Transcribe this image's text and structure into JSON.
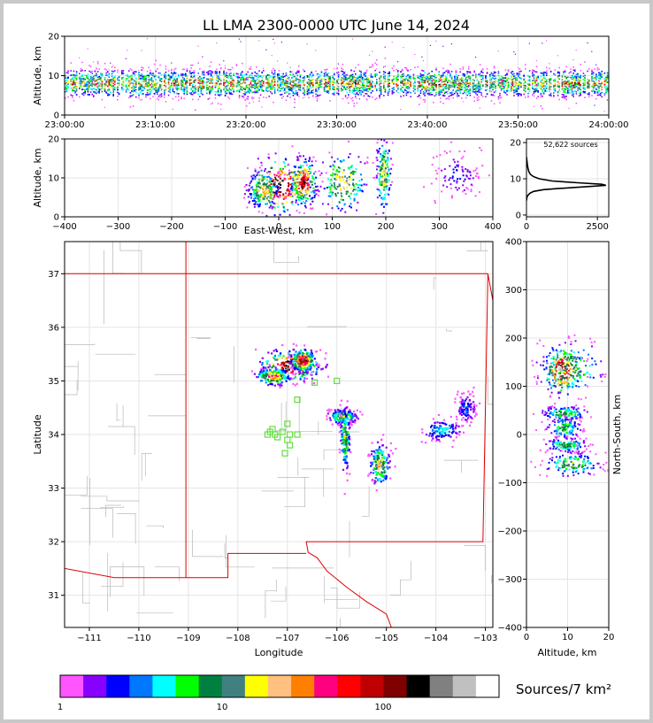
{
  "title": "LL LMA 2300-0000 UTC June 14, 2024",
  "colors": {
    "palette": [
      "#ff55ff",
      "#8800ff",
      "#0000ff",
      "#0077ff",
      "#00ffff",
      "#00ff00",
      "#008040",
      "#408080",
      "#ffff00",
      "#ffc080",
      "#ff8000",
      "#ff0080",
      "#ff0000",
      "#c00000",
      "#800000",
      "#000000",
      "#808080",
      "#c0c0c0",
      "#ffffff"
    ],
    "state_border": "#e00000",
    "county_border": "#b8b8b8",
    "station": "#66dd44",
    "grid": "#e4e4e4"
  },
  "colorbar": {
    "label": "Sources/7 km²",
    "ticks": [
      "1",
      "10",
      "100"
    ]
  },
  "chart_data": [
    {
      "id": "time-altitude",
      "type": "heatmap",
      "ylabel": "Altitude, km",
      "xlabel": "",
      "ylim": [
        0,
        20
      ],
      "yticks": [
        "0",
        "10",
        "20"
      ],
      "xticks": [
        "23:00:00",
        "23:10:00",
        "23:20:00",
        "23:30:00",
        "23:40:00",
        "23:50:00",
        "24:00:00"
      ],
      "band": {
        "center_km": 8,
        "half_width_km": 3
      }
    },
    {
      "id": "eastwest-altitude",
      "type": "heatmap",
      "xlabel": "East-West, km",
      "ylabel": "Altitude, km",
      "xlim": [
        -400,
        400
      ],
      "ylim": [
        0,
        20
      ],
      "xticks": [
        "−400",
        "−300",
        "−200",
        "−100",
        "0",
        "100",
        "200",
        "300",
        "400"
      ],
      "yticks": [
        "0",
        "10",
        "20"
      ],
      "clusters": [
        {
          "x": 0,
          "y": 8,
          "sx": 28,
          "sy": 3.5,
          "peak": 1.0
        },
        {
          "x": 45,
          "y": 9,
          "sx": 12,
          "sy": 3,
          "peak": 0.9
        },
        {
          "x": -30,
          "y": 7,
          "sx": 15,
          "sy": 2.5,
          "peak": 0.6
        },
        {
          "x": 120,
          "y": 9,
          "sx": 22,
          "sy": 4,
          "peak": 0.6
        },
        {
          "x": 195,
          "y": 11,
          "sx": 7,
          "sy": 5,
          "peak": 0.55
        },
        {
          "x": 330,
          "y": 11,
          "sx": 25,
          "sy": 3,
          "peak": 0.15
        }
      ]
    },
    {
      "id": "altitude-histogram",
      "type": "line",
      "annotation": "52,622 sources",
      "xlim": [
        0,
        2900
      ],
      "ylim": [
        0,
        20
      ],
      "xticks": [
        "0",
        "2500"
      ],
      "yticks": [
        "0",
        "10",
        "20"
      ],
      "x": [
        0,
        20,
        60,
        120,
        250,
        600,
        1100,
        1700,
        2300,
        2800,
        2650,
        1800,
        900,
        450,
        250,
        140,
        80,
        50,
        30,
        15,
        0
      ],
      "y": [
        4.0,
        5.0,
        5.5,
        6.0,
        6.5,
        7.0,
        7.3,
        7.6,
        7.9,
        8.2,
        8.5,
        8.9,
        9.4,
        10.0,
        10.6,
        11.2,
        12.0,
        13.0,
        14.0,
        15.0,
        16.0
      ]
    },
    {
      "id": "plan-view-map",
      "type": "heatmap",
      "xlabel": "Longitude",
      "ylabel": "Latitude",
      "xlim": [
        -111.5,
        -102.85
      ],
      "ylim": [
        30.4,
        37.6
      ],
      "xticks": [
        "−111",
        "−110",
        "−109",
        "−108",
        "−107",
        "−106",
        "−105",
        "−104",
        "−103"
      ],
      "yticks": [
        "31",
        "32",
        "33",
        "34",
        "35",
        "36",
        "37"
      ],
      "clusters": [
        {
          "lon": -106.95,
          "lat": 35.3,
          "slon": 0.3,
          "slat": 0.14,
          "peak": 1.0
        },
        {
          "lon": -106.7,
          "lat": 35.4,
          "slon": 0.12,
          "slat": 0.1,
          "peak": 0.95
        },
        {
          "lon": -107.3,
          "lat": 35.1,
          "slon": 0.18,
          "slat": 0.08,
          "peak": 0.7
        },
        {
          "lon": -105.9,
          "lat": 34.35,
          "slon": 0.15,
          "slat": 0.07,
          "peak": 0.5
        },
        {
          "lon": -105.85,
          "lat": 33.95,
          "slon": 0.05,
          "slat": 0.3,
          "peak": 0.5
        },
        {
          "lon": -105.15,
          "lat": 33.45,
          "slon": 0.1,
          "slat": 0.2,
          "peak": 0.6
        },
        {
          "lon": -103.9,
          "lat": 34.1,
          "slon": 0.2,
          "slat": 0.1,
          "peak": 0.3
        },
        {
          "lon": -103.4,
          "lat": 34.5,
          "slon": 0.1,
          "slat": 0.15,
          "peak": 0.2
        }
      ],
      "stations": [
        [
          -106.45,
          34.97
        ],
        [
          -106.0,
          35.0
        ],
        [
          -106.8,
          34.65
        ],
        [
          -107.35,
          34.05
        ],
        [
          -107.25,
          34.0
        ],
        [
          -107.3,
          34.1
        ],
        [
          -107.1,
          34.05
        ],
        [
          -107.0,
          34.2
        ],
        [
          -106.95,
          34.0
        ],
        [
          -106.8,
          34.0
        ],
        [
          -107.0,
          33.9
        ],
        [
          -106.95,
          33.8
        ],
        [
          -107.05,
          33.65
        ],
        [
          -107.4,
          34.0
        ],
        [
          -107.2,
          33.95
        ]
      ],
      "state_borders": [
        [
          [
            -111.5,
            37.0
          ],
          [
            -102.95,
            37.0
          ]
        ],
        [
          [
            -109.05,
            37.6
          ],
          [
            -109.05,
            31.33
          ]
        ],
        [
          [
            -102.95,
            37.0
          ],
          [
            -102.85,
            36.5
          ]
        ],
        [
          [
            -102.95,
            37.0
          ],
          [
            -103.05,
            32.0
          ],
          [
            -106.62,
            32.0
          ],
          [
            -106.58,
            31.8
          ],
          [
            -106.4,
            31.7
          ],
          [
            -106.2,
            31.45
          ],
          [
            -105.8,
            31.15
          ],
          [
            -105.4,
            30.88
          ],
          [
            -105.0,
            30.65
          ],
          [
            -104.9,
            30.4
          ]
        ],
        [
          [
            -109.05,
            31.33
          ],
          [
            -108.2,
            31.33
          ],
          [
            -108.2,
            31.78
          ],
          [
            -106.62,
            31.78
          ]
        ],
        [
          [
            -111.5,
            31.5
          ],
          [
            -110.5,
            31.33
          ],
          [
            -109.05,
            31.33
          ]
        ]
      ]
    },
    {
      "id": "altitude-northsouth",
      "type": "heatmap",
      "xlabel": "Altitude, km",
      "ylabel": "North-South, km",
      "xlim": [
        0,
        20
      ],
      "ylim": [
        -400,
        400
      ],
      "xticks": [
        "0",
        "10",
        "20"
      ],
      "yticks": [
        "−400",
        "−300",
        "−200",
        "−100",
        "0",
        "100",
        "200",
        "300",
        "400"
      ],
      "clusters": [
        {
          "x": 8.5,
          "y": 135,
          "sx": 2.2,
          "sy": 25,
          "peak": 1.0
        },
        {
          "x": 10.5,
          "y": 140,
          "sx": 4.0,
          "sy": 30,
          "peak": 0.5
        },
        {
          "x": 9.0,
          "y": 45,
          "sx": 2.8,
          "sy": 8,
          "peak": 0.45
        },
        {
          "x": 9.0,
          "y": 15,
          "sx": 2.2,
          "sy": 12,
          "peak": 0.4
        },
        {
          "x": 9.5,
          "y": -20,
          "sx": 2.5,
          "sy": 8,
          "peak": 0.45
        },
        {
          "x": 11.0,
          "y": -60,
          "sx": 3.5,
          "sy": 12,
          "peak": 0.5
        }
      ]
    }
  ]
}
